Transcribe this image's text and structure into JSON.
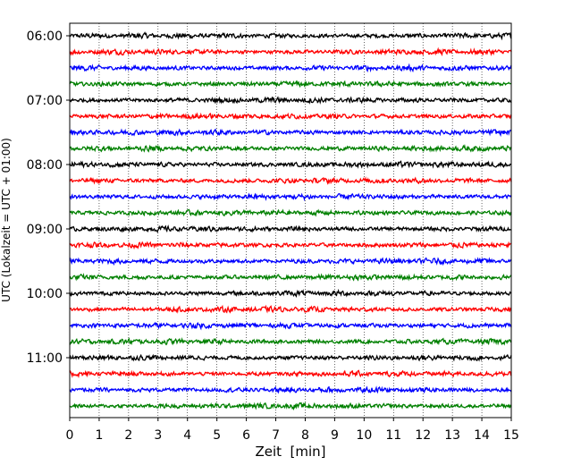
{
  "chart_data": {
    "type": "line",
    "title": "",
    "xlabel": "Zeit  [min]",
    "ylabel": "UTC (Lokalzeit = UTC + 01:00)",
    "xlim": [
      0,
      15
    ],
    "xticks": [
      0,
      1,
      2,
      3,
      4,
      5,
      6,
      7,
      8,
      9,
      10,
      11,
      12,
      13,
      14,
      15
    ],
    "y_tick_labels": [
      "06:00",
      "07:00",
      "08:00",
      "09:00",
      "10:00",
      "11:00"
    ],
    "trace_start_hours": [
      "06:00",
      "06:15",
      "06:30",
      "06:45",
      "07:00",
      "07:15",
      "07:30",
      "07:45",
      "08:00",
      "08:15",
      "08:30",
      "08:45",
      "09:00",
      "09:15",
      "09:30",
      "09:45",
      "10:00",
      "10:15",
      "10:30",
      "10:45",
      "11:00",
      "11:15",
      "11:30",
      "11:45"
    ],
    "trace_colors": [
      "#000000",
      "#ff0000",
      "#0000ff",
      "#008000"
    ],
    "grid": "vertical dotted at each minute",
    "legend": "none"
  }
}
